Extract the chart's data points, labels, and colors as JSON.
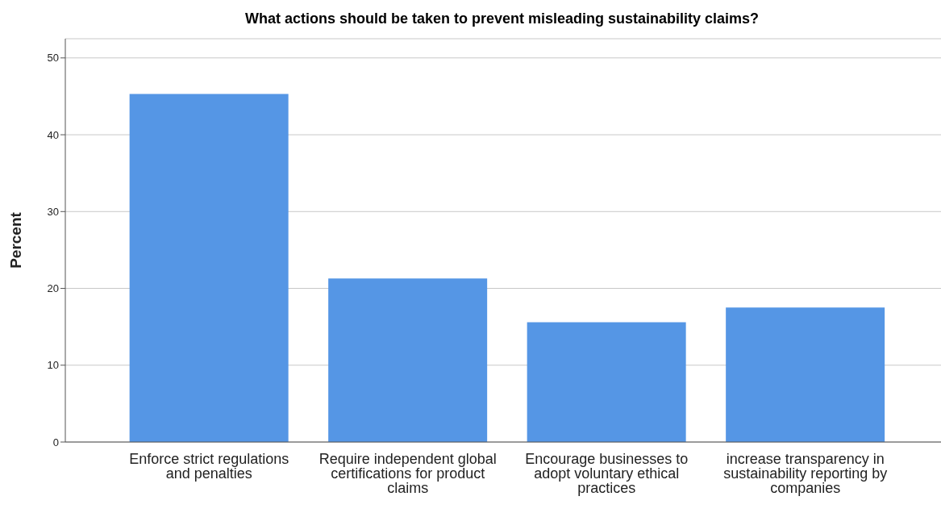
{
  "chart_data": {
    "type": "bar",
    "title": "What actions should be taken to prevent misleading sustainability claims?",
    "ylabel": "Percent",
    "categories": [
      "Enforce strict regulations and penalties",
      "Require independent global certifications for product claims",
      "Encourage businesses to adopt voluntary ethical practices",
      "increase transparency in sustainability reporting by companies"
    ],
    "values": [
      45.3,
      21.3,
      15.6,
      17.5
    ],
    "color": "#5596e5",
    "ylim": [
      0,
      52.5
    ],
    "yticks": [
      0,
      10,
      20,
      30,
      40,
      50
    ],
    "grid": "y"
  }
}
